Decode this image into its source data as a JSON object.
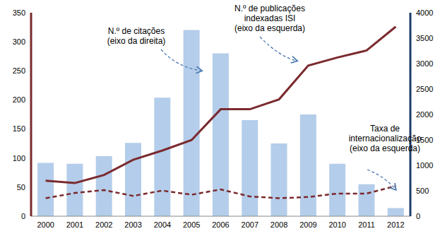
{
  "chart_data": {
    "type": "bar",
    "categories": [
      "2000",
      "2001",
      "2002",
      "2003",
      "2004",
      "2005",
      "2006",
      "2007",
      "2008",
      "2009",
      "2010",
      "2011",
      "2012"
    ],
    "series": [
      {
        "name": "N.º de citações",
        "type": "bar",
        "axis": "y2",
        "color": "#b4cdea",
        "values": [
          1050,
          1030,
          1180,
          1440,
          2330,
          3660,
          3200,
          1890,
          1430,
          2000,
          1030,
          630,
          160
        ]
      },
      {
        "name": "N.º de publicações indexadas ISI",
        "type": "line",
        "axis": "y",
        "color": "#7a2a2e",
        "line_style": "solid",
        "values": [
          61,
          57,
          71,
          97,
          113,
          131,
          184,
          184,
          201,
          259,
          273,
          285,
          326
        ]
      },
      {
        "name": "Taxa de internacionalização",
        "type": "line",
        "axis": "y",
        "color": "#7a2a2e",
        "line_style": "dashed",
        "values": [
          31,
          40,
          45,
          35,
          44,
          37,
          46,
          34,
          31,
          33,
          39,
          39,
          52
        ]
      }
    ],
    "ylim": [
      0,
      350
    ],
    "yticks": [
      0,
      50,
      100,
      150,
      200,
      250,
      300,
      350
    ],
    "y2lim": [
      0,
      4000
    ],
    "y2ticks": [
      0,
      500,
      1000,
      1500,
      2000,
      2500,
      3000,
      3500,
      4000
    ],
    "grid": false,
    "annotations": [
      {
        "text": [
          "N.º de citações",
          "(eixo da direita)"
        ]
      },
      {
        "text": [
          "N.º de publicações",
          "indexadas ISI",
          "(eixo da esquerda)"
        ]
      },
      {
        "text": [
          "Taxa de",
          "internacionalização",
          "(eixo da esquerda)"
        ]
      }
    ]
  }
}
